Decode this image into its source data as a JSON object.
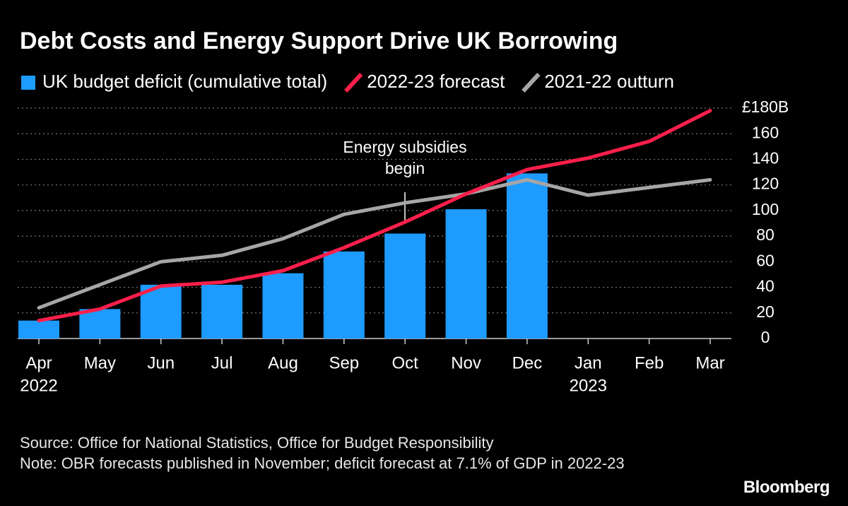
{
  "chart_data": {
    "type": "bar_line",
    "title": "Debt Costs and Energy Support Drive UK Borrowing",
    "categories": [
      "Apr",
      "May",
      "Jun",
      "Jul",
      "Aug",
      "Sep",
      "Oct",
      "Nov",
      "Dec",
      "Jan",
      "Feb",
      "Mar"
    ],
    "category_sublabels": [
      "2022",
      null,
      null,
      null,
      null,
      null,
      null,
      null,
      null,
      "2023",
      null,
      null
    ],
    "series": [
      {
        "name": "UK budget deficit (cumulative total)",
        "kind": "bar",
        "color": "#1e9bff",
        "values": [
          14,
          23,
          42,
          42,
          51,
          68,
          82,
          101,
          129,
          null,
          null,
          null
        ]
      },
      {
        "name": "2022-23 forecast",
        "kind": "line",
        "color": "#ff1f4b",
        "values": [
          14,
          23,
          41,
          44,
          53,
          71,
          91,
          113,
          132,
          141,
          154,
          178
        ]
      },
      {
        "name": "2021-22 outturn",
        "kind": "line",
        "color": "#a6a6a6",
        "values": [
          24,
          42,
          60,
          65,
          78,
          97,
          106,
          113,
          124,
          112,
          118,
          124
        ]
      }
    ],
    "ylim": [
      0,
      180
    ],
    "yticks": [
      0,
      20,
      40,
      60,
      80,
      100,
      120,
      140,
      160,
      {
        "value": 180,
        "label": "£180B"
      }
    ],
    "grid": true,
    "annotation": [
      "Energy subsidies",
      "begin"
    ],
    "source": "Source: Office for National Statistics, Office for Budget Responsibility",
    "note": "Note: OBR forecasts published in November; deficit forecast at 7.1% of GDP in 2022-23",
    "brand": "Bloomberg"
  }
}
